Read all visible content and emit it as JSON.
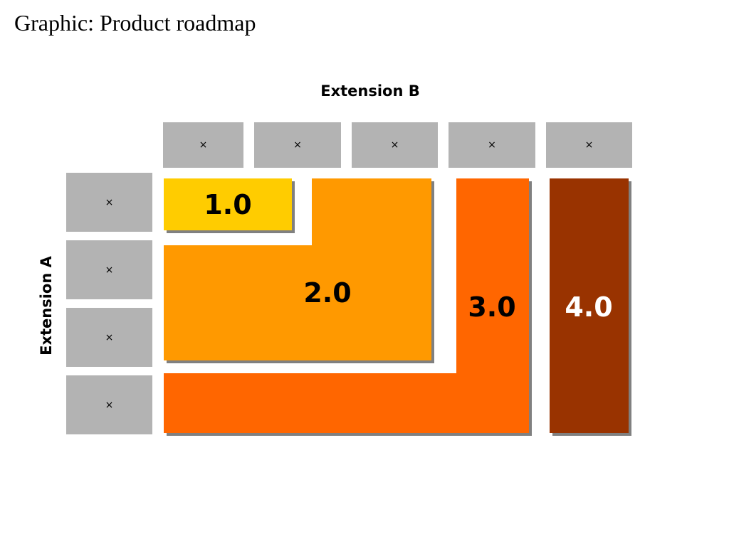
{
  "title": "Graphic: Product roadmap",
  "axes": {
    "extension_b": "Extension B",
    "extension_a": "Extension A"
  },
  "column_headers": [
    "×",
    "×",
    "×",
    "×",
    "×"
  ],
  "row_headers": [
    "×",
    "×",
    "×",
    "×"
  ],
  "versions": [
    {
      "label": "1.0",
      "color": "#FFCC00",
      "text_color": "#000000"
    },
    {
      "label": "2.0",
      "color": "#FF9900",
      "text_color": "#000000"
    },
    {
      "label": "3.0",
      "color": "#FF6600",
      "text_color": "#000000"
    },
    {
      "label": "4.0",
      "color": "#993300",
      "text_color": "#FFFFFF"
    }
  ],
  "colors": {
    "header_cell": "#B3B3B3",
    "shadow": "#808080"
  }
}
